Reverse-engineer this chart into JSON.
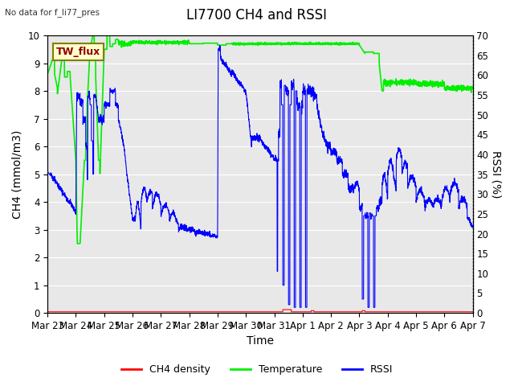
{
  "title": "LI7700 CH4 and RSSI",
  "top_left_text": "No data for f_li77_pres",
  "box_label": "TW_flux",
  "xlabel": "Time",
  "ylabel_left": "CH4 (mmol/m3)",
  "ylabel_right": "RSSI (%)",
  "ylim_left": [
    0.0,
    10.0
  ],
  "ylim_right": [
    0,
    70
  ],
  "yticks_left": [
    0.0,
    1.0,
    2.0,
    3.0,
    4.0,
    5.0,
    6.0,
    7.0,
    8.0,
    9.0,
    10.0
  ],
  "yticks_right": [
    0,
    5,
    10,
    15,
    20,
    25,
    30,
    35,
    40,
    45,
    50,
    55,
    60,
    65,
    70
  ],
  "xtick_labels": [
    "Mar 23",
    "Mar 24",
    "Mar 25",
    "Mar 26",
    "Mar 27",
    "Mar 28",
    "Mar 29",
    "Mar 30",
    "Mar 31",
    "Apr 1",
    "Apr 2",
    "Apr 3",
    "Apr 4",
    "Apr 5",
    "Apr 6",
    "Apr 7"
  ],
  "background_color": "#e8e8e8",
  "ch4_color": "#ff0000",
  "temp_color": "#00ee00",
  "rssi_color": "#0000ff",
  "legend_entries": [
    "CH4 density",
    "Temperature",
    "RSSI"
  ],
  "title_fontsize": 12,
  "axis_label_fontsize": 10,
  "tick_fontsize": 8.5
}
